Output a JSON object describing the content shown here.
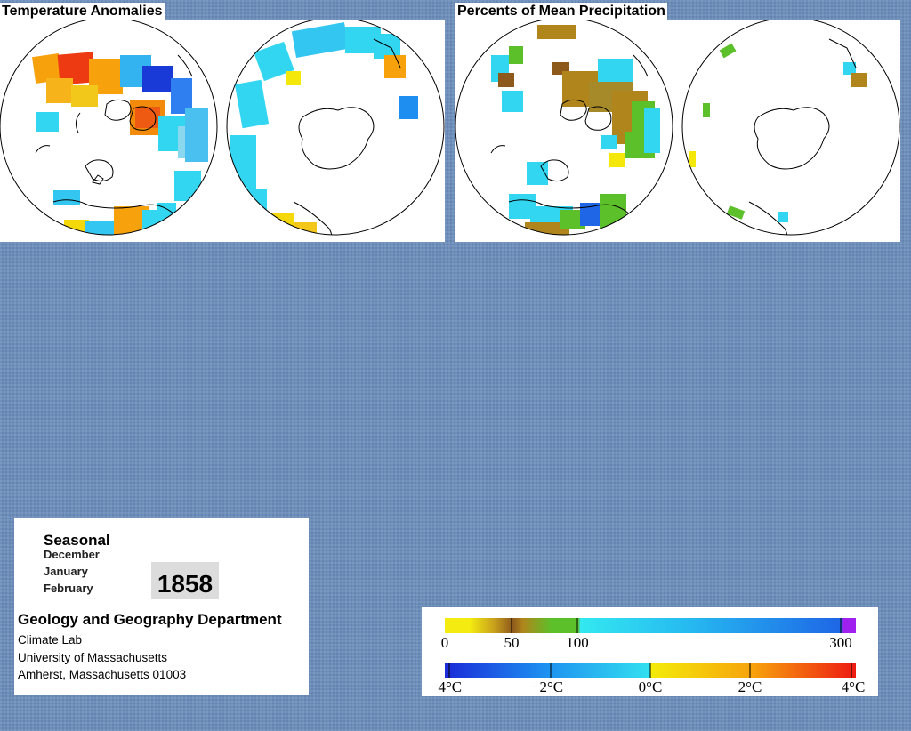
{
  "panels": {
    "temperature": {
      "title": "Temperature Anomalies"
    },
    "precipitation": {
      "title": "Percents of Mean Precipitation"
    }
  },
  "info": {
    "season": "Seasonal",
    "months": [
      "December",
      "January",
      "February"
    ],
    "year": "1858",
    "department": "Geology and Geography Department",
    "address_lines": [
      "Climate Lab",
      "University of Massachusetts",
      "Amherst, Massachusetts 01003"
    ]
  },
  "legend": {
    "precipitation_ticks": [
      "0",
      "50",
      "100",
      "300"
    ],
    "temperature_ticks": [
      "−4°C",
      "−2°C",
      "0°C",
      "2°C",
      "4°C"
    ]
  },
  "colors": {
    "background": "#6f8fbb",
    "temp_scale": [
      "#1a2ad8",
      "#1d7ff0",
      "#33d6f0",
      "#f4e80a",
      "#f7a20c",
      "#ee2a12"
    ],
    "precip_scale": [
      "#f4ec10",
      "#b0861c",
      "#8e5a1c",
      "#5cc02a",
      "#33e8f0",
      "#1e66e6",
      "#a020f0"
    ]
  }
}
